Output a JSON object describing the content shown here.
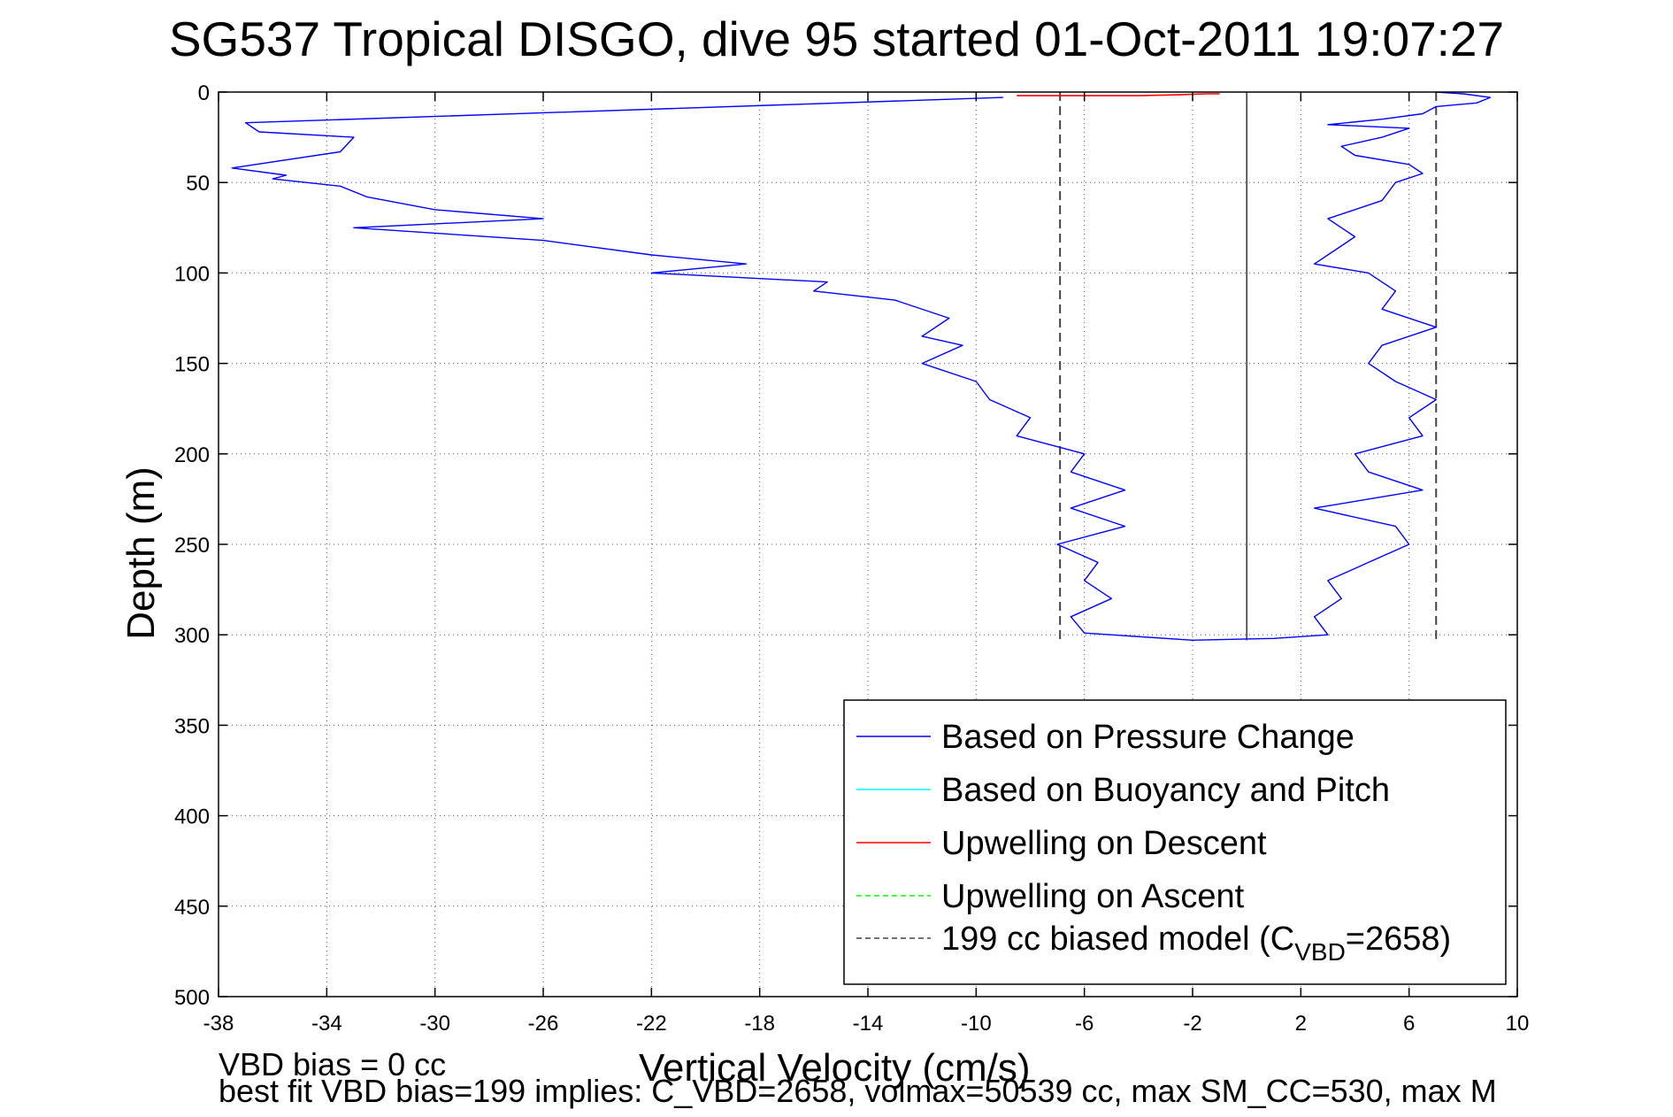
{
  "chart_data": {
    "type": "line",
    "title": "SG537 Tropical DISGO, dive 95 started 01-Oct-2011 19:07:27",
    "xlabel": "Vertical Velocity (cm/s)",
    "ylabel": "Depth (m)",
    "xlim": [
      -38,
      10
    ],
    "ylim": [
      0,
      500
    ],
    "y_reversed": true,
    "xticks": [
      -38,
      -34,
      -30,
      -26,
      -22,
      -18,
      -14,
      -10,
      -6,
      -2,
      2,
      6,
      10
    ],
    "yticks": [
      0,
      50,
      100,
      150,
      200,
      250,
      300,
      350,
      400,
      450,
      500
    ],
    "grid": true,
    "legend_position": "lower-right",
    "colors": {
      "pressure": "#0000ff",
      "buoyancy": "#00ffff",
      "descent": "#ff0000",
      "ascent": "#00ff00",
      "model": "#444444"
    },
    "series": [
      {
        "name": "Based on Pressure Change",
        "segment": "descent",
        "x": [
          -9,
          -37,
          -36.5,
          -33,
          -33.5,
          -37.5,
          -35.5,
          -36,
          -33.5,
          -32.5,
          -30,
          -26,
          -33,
          -26,
          -22,
          -18.5,
          -22,
          -15.5,
          -16,
          -13,
          -11,
          -12,
          -10.5,
          -12,
          -10,
          -9.5,
          -8,
          -8.5,
          -6,
          -6.5,
          -4.5,
          -6.5,
          -4.5,
          -7,
          -5.5,
          -6,
          -5,
          -6.5,
          -6,
          -5
        ],
        "y": [
          3,
          17,
          22,
          25,
          33,
          42,
          46,
          48,
          52,
          58,
          65,
          70,
          75,
          82,
          90,
          95,
          100,
          105,
          110,
          115,
          125,
          135,
          140,
          150,
          160,
          170,
          180,
          190,
          200,
          210,
          220,
          230,
          240,
          250,
          260,
          270,
          280,
          290,
          299,
          300
        ]
      },
      {
        "name": "Based on Pressure Change",
        "segment": "ascent",
        "x": [
          -5,
          -2,
          1,
          3,
          2.5,
          3.5,
          3,
          4.5,
          6,
          5.5,
          2.5,
          6.5,
          4.5,
          4,
          6.5,
          6,
          7,
          5.5,
          4.5,
          5,
          7,
          5,
          5.5,
          4.5,
          2.5,
          3,
          4,
          3,
          5,
          5.5,
          6.5,
          6,
          4,
          3.5,
          5,
          6,
          3,
          5,
          6.5,
          7,
          8.5,
          9,
          8,
          7
        ],
        "y": [
          300,
          303,
          302,
          300,
          290,
          280,
          270,
          260,
          250,
          240,
          230,
          220,
          210,
          200,
          190,
          180,
          170,
          160,
          150,
          140,
          130,
          120,
          110,
          100,
          95,
          90,
          80,
          70,
          60,
          50,
          45,
          40,
          35,
          30,
          25,
          20,
          18,
          15,
          12,
          8,
          6,
          3,
          1,
          0
        ]
      },
      {
        "name": "Based on Buoyancy and Pitch",
        "x": [],
        "y": []
      },
      {
        "name": "Upwelling on Descent",
        "x": [
          -8.5,
          -6,
          -4,
          -2.5,
          -1.5,
          -1
        ],
        "y": [
          2,
          2,
          2,
          1.5,
          1,
          1
        ]
      },
      {
        "name": "Upwelling on Ascent",
        "x": [],
        "y": []
      },
      {
        "name": "199 cc biased model (C_VBD=2658)",
        "x": [
          -6.9,
          -6.9,
          7.0,
          7.0
        ],
        "y": [
          0,
          303,
          0,
          303
        ]
      }
    ],
    "zero_line": {
      "x": 0,
      "y": [
        0,
        303
      ]
    },
    "legend": [
      {
        "label": "Based on Pressure Change",
        "style": "solid",
        "color": "#0000ff"
      },
      {
        "label": "Based on Buoyancy and Pitch",
        "style": "solid",
        "color": "#00ffff"
      },
      {
        "label": "Upwelling on Descent",
        "style": "solid",
        "color": "#ff0000"
      },
      {
        "label": "Upwelling on Ascent",
        "style": "dashed",
        "color": "#00ff00"
      },
      {
        "label": "199 cc biased model (C",
        "sub": "VBD",
        "tail": "=2658)",
        "style": "dashed",
        "color": "#444444"
      }
    ]
  },
  "footer": {
    "line1": "VBD bias = 0 cc",
    "line2": "best fit VBD bias=199 implies: C_VBD=2658, volmax=50539 cc, max SM_CC=530, max M"
  }
}
